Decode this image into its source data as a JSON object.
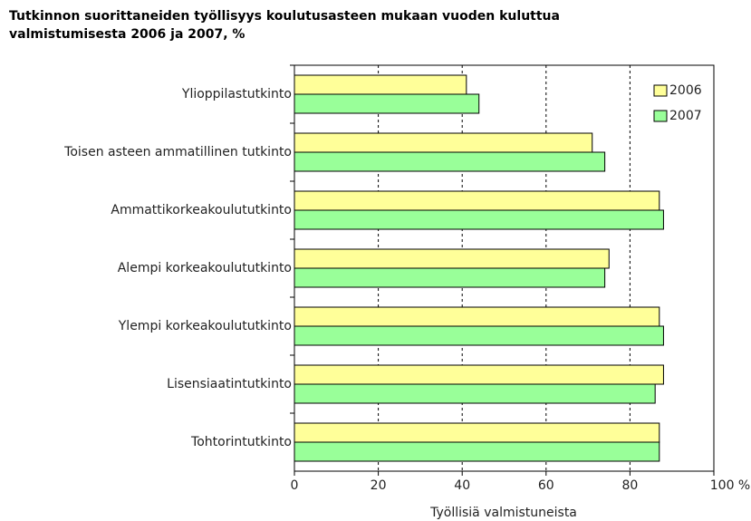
{
  "chart_data": {
    "type": "barh",
    "title": [
      "Tutkinnon suorittaneiden työllisyys koulutusasteen mukaan vuoden kuluttua",
      "valmistumisesta 2006 ja 2007, %"
    ],
    "xlabel": "Työllisiä valmistuneista",
    "categories": [
      "Ylioppilastutkinto",
      "Toisen asteen ammatillinen tutkinto",
      "Ammattikorkeakoulututkinto",
      "Alempi korkeakoulututkinto",
      "Ylempi korkeakoulututkinto",
      "Lisensiaatintutkinto",
      "Tohtorintutkinto"
    ],
    "series": [
      {
        "name": "2006",
        "color": "#ffff99",
        "values": [
          41,
          71,
          87,
          75,
          87,
          88,
          87
        ]
      },
      {
        "name": "2007",
        "color": "#99ff99",
        "values": [
          44,
          74,
          88,
          74,
          88,
          86,
          87
        ]
      }
    ],
    "xlim": [
      0,
      100
    ],
    "xticks": [
      0,
      20,
      40,
      60,
      80,
      {
        "value": 100,
        "label": "100 %"
      }
    ],
    "grid": true,
    "legend": "upper right"
  }
}
